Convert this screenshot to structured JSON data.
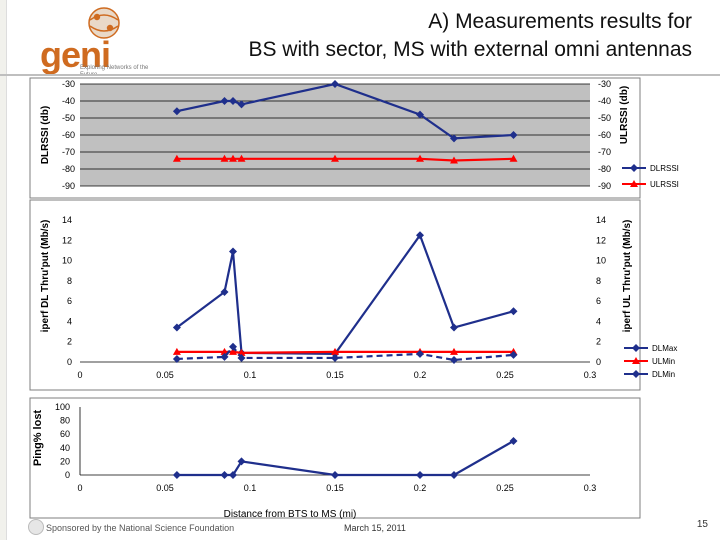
{
  "header": {
    "title_line1": "A)  Measurements results for",
    "title_line2": "BS with sector, MS with external omni antennas",
    "logo_word": "geni",
    "logo_tagline": "Exploring Networks of the Future"
  },
  "footer": {
    "sponsor": "Sponsored by the National Science Foundation",
    "date": "March 15, 2011",
    "page": "15"
  },
  "colors": {
    "blue": "#1f2f8c",
    "red": "#ff0000",
    "plot_bg": "#c0c0c0",
    "frame": "#808080",
    "logo_orange": "#cf6b20"
  },
  "chart_data": [
    {
      "type": "line",
      "ylabel_left": "DLRSSI (db)",
      "ylabel_right": "ULRSSI (db)",
      "yticks": [
        -30,
        -40,
        -50,
        -60,
        -70,
        -80,
        -90
      ],
      "ylim": [
        -90,
        -30
      ],
      "xlim": [
        0,
        0.3
      ],
      "grid": true,
      "legend": "right",
      "series": [
        {
          "name": "DLRSSI",
          "color": "#1f2f8c",
          "marker": "diamond",
          "x": [
            0.057,
            0.085,
            0.09,
            0.095,
            0.15,
            0.2,
            0.22,
            0.255
          ],
          "values": [
            -46,
            -40,
            -40,
            -42,
            -30,
            -48,
            -62,
            -60
          ]
        },
        {
          "name": "ULRSSI",
          "color": "#ff0000",
          "marker": "triangle",
          "x": [
            0.057,
            0.085,
            0.09,
            0.095,
            0.15,
            0.2,
            0.22,
            0.255
          ],
          "values": [
            -74,
            -74,
            -74,
            -74,
            -74,
            -74,
            -75,
            -74
          ]
        }
      ]
    },
    {
      "type": "line",
      "ylabel_left": "iperf DL Thru'put  (Mb/s)",
      "ylabel_right": "iperf UL Thru'put (Mb/s)",
      "yticks": [
        14,
        12,
        10,
        8,
        6,
        4,
        2,
        0
      ],
      "xticks": [
        "0",
        "0.05",
        "0.1",
        "0.15",
        "0.2",
        "0.25",
        "0.3"
      ],
      "ylim": [
        0,
        14
      ],
      "xlim": [
        0,
        0.3
      ],
      "grid": false,
      "legend": "right",
      "series": [
        {
          "name": "DLMax",
          "color": "#1f2f8c",
          "marker": "diamond",
          "x": [
            0.057,
            0.085,
            0.09,
            0.095,
            0.15,
            0.2,
            0.22,
            0.255
          ],
          "values": [
            3.4,
            6.9,
            10.9,
            0.9,
            0.8,
            12.5,
            3.4,
            5.0
          ]
        },
        {
          "name": "ULMin",
          "color": "#ff0000",
          "marker": "triangle",
          "x": [
            0.057,
            0.085,
            0.09,
            0.095,
            0.15,
            0.2,
            0.22,
            0.255
          ],
          "values": [
            1.0,
            1.0,
            1.0,
            0.9,
            1.0,
            1.0,
            1.0,
            1.0
          ]
        },
        {
          "name": "DLMin",
          "color": "#1f2f8c",
          "marker": "diamond",
          "x": [
            0.057,
            0.085,
            0.09,
            0.095,
            0.15,
            0.2,
            0.22,
            0.255
          ],
          "values": [
            0.3,
            0.5,
            1.5,
            0.4,
            0.4,
            0.8,
            0.2,
            0.7
          ]
        }
      ]
    },
    {
      "type": "line",
      "ylabel_left": "Ping% lost",
      "xlabel": "Distance from BTS to MS  (mi)",
      "yticks": [
        100,
        80,
        60,
        40,
        20,
        0
      ],
      "xticks": [
        "0",
        "0.05",
        "0.1",
        "0.15",
        "0.2",
        "0.25",
        "0.3"
      ],
      "ylim": [
        0,
        100
      ],
      "xlim": [
        0,
        0.3
      ],
      "grid": false,
      "series": [
        {
          "color": "#1f2f8c",
          "marker": "diamond",
          "x": [
            0.057,
            0.085,
            0.09,
            0.095,
            0.15,
            0.2,
            0.22,
            0.255
          ],
          "values": [
            0,
            0,
            0,
            20,
            0,
            0,
            0,
            50
          ]
        }
      ]
    }
  ]
}
